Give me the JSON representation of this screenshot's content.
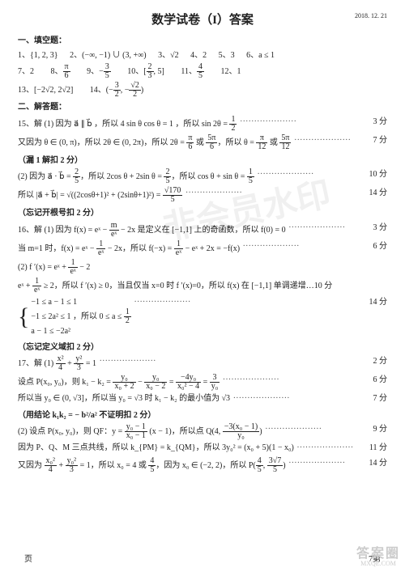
{
  "header": {
    "title": "数学试卷（I）答案",
    "date": "2018. 12. 21"
  },
  "section1": {
    "heading": "一、填空题："
  },
  "fill": {
    "a1_n": "1、",
    "a1": "{1, 2, 3}",
    "a2_n": "2、",
    "a2": "(−∞, −1) ∪ (3, +∞)",
    "a3_n": "3、",
    "a3": "√2",
    "a4_n": "4、",
    "a4": "2",
    "a5_n": "5、",
    "a5": "3",
    "a6_n": "6、",
    "a6": "a ≤ 1",
    "a7_n": "7、",
    "a7": "2",
    "a8_n": "8、",
    "a8_num": "π",
    "a8_den": "6",
    "a9_n": "9、",
    "a9_sign": "−",
    "a9_num": "3",
    "a9_den": "5",
    "a10_n": "10、",
    "a10_l": "[",
    "a10_num": "2",
    "a10_den": "3",
    "a10_r": ", 5]",
    "a11_n": "11、",
    "a11_num": "4",
    "a11_den": "5",
    "a12_n": "12、",
    "a12": "1",
    "a13_n": "13、",
    "a13": "[−2√2, 2√2]",
    "a14_n": "14、",
    "a14_l": "(−",
    "a14_num": "3",
    "a14_den": "2",
    "a14_m": ", −",
    "a14b_num": "√2",
    "a14b_den": "2",
    "a14_r": ")"
  },
  "section2": {
    "heading": "二、解答题："
  },
  "q15": {
    "l1a": "15、解 (1) 因为 a⃗ ∥ b⃗ ，所以 4 sin θ cos θ = 1 ，所以 sin 2θ = ",
    "l1_num": "1",
    "l1_den": "2",
    "l1_pts": "3 分",
    "l2a": "又因为 θ ∈ (0, π)，所以 2θ ∈ (0, 2π)，所以 2θ = ",
    "l2b": " 或 ",
    "l2c": "，所以 θ = ",
    "l2d": " 或 ",
    "l2_f1n": "π",
    "l2_f1d": "6",
    "l2_f2n": "5π",
    "l2_f2d": "6",
    "l2_f3n": "π",
    "l2_f3d": "12",
    "l2_f4n": "5π",
    "l2_f4d": "12",
    "l2_pts": "7 分",
    "note1": "（漏 1 解扣 2 分）",
    "l3a": "(2) 因为 a⃗ · b⃗ = ",
    "l3_f1n": "2",
    "l3_f1d": "5",
    "l3b": "，所以 2cos θ + 2sin θ = ",
    "l3_f2n": "2",
    "l3_f2d": "5",
    "l3c": "，所以 cos θ + sin θ = ",
    "l3_f3n": "1",
    "l3_f3d": "5",
    "l3_pts": "10 分",
    "l4a": "所以 |a⃗ + b⃗| = √((2cosθ+1)² + (2sinθ+1)²) = ",
    "l4_num": "√170",
    "l4_den": "5",
    "l4_pts": "14 分",
    "note2": "（忘记开根号扣 2 分）"
  },
  "q16": {
    "l1a": "16、解 (1) 因为 f(x) = eˣ − ",
    "l1_fn": "m",
    "l1_fd": "eˣ",
    "l1b": " − 2x 是定义在 [−1,1] 上的奇函数，所以 f(0) = 0 ",
    "l1_pts": "3 分",
    "l2a": "当 m=1 时，f(x) = eˣ − ",
    "l2_f1n": "1",
    "l2_f1d": "eˣ",
    "l2b": " − 2x，所以 f(−x) = ",
    "l2_f2n": "1",
    "l2_f2d": "eˣ",
    "l2c": " − eˣ + 2x = −f(x) ",
    "l2_pts": "6 分",
    "l3a": "(2)  f ′(x) = eˣ + ",
    "l3_fn": "1",
    "l3_fd": "eˣ",
    "l3b": " − 2",
    "l4a": "eˣ + ",
    "l4_fn": "1",
    "l4_fd": "eˣ",
    "l4b": " ≥ 2，所以 f ′(x) ≥ 0，当且仅当 x=0 时 f ′(x)=0，所以 f(x) 在 [−1,1] 单调递增…10 分",
    "brace_a": "−1 ≤ a − 1 ≤ 1",
    "brace_b": "−1 ≤ 2a² ≤ 1 ，所以 0 ≤ a ≤ ",
    "brace_c": "a − 1 ≤ −2a²",
    "l5_fn": "1",
    "l5_fd": "2",
    "l5_pts": "14 分",
    "note": "（忘记定义域扣 2 分）"
  },
  "q17": {
    "l1a": "17、解 (1) ",
    "l1_f1n": "x²",
    "l1_f1d": "4",
    "l1b": " + ",
    "l1_f2n": "y²",
    "l1_f2d": "3",
    "l1c": " = 1 ",
    "l1_pts": "2 分",
    "l2a": "设点 P(x₀, y₀)，则 k₁ − k₂ = ",
    "l2_f1n": "y₀",
    "l2_f1d": "x₀ + 2",
    "l2b": " − ",
    "l2_f2n": "y₀",
    "l2_f2d": "x₀ − 2",
    "l2c": " = ",
    "l2_f3n": "−4y₀",
    "l2_f3d": "x₀² − 4",
    "l2d": " = ",
    "l2_f4n": "3",
    "l2_f4d": "y₀",
    "l2_pts": "6 分",
    "l3a": "所以当 y₀ ∈ (0, √3]，所以当 y₀ = √3 时 k₁ − k₂ 的最小值为 √3 ",
    "l3_pts": "7 分",
    "note": "（用结论 k₁k₂ = − b²/a² 不证明扣 2 分）",
    "l4a": "(2) 设点 P(x₀, y₀)，则 QF：y = ",
    "l4_fn": "y₀ − 1",
    "l4_fd": "x₀ − 1",
    "l4b": " (x − 1)，所以点 Q(4, ",
    "l4_f2n": "−3(x₀ − 1)",
    "l4_f2d": "y₀",
    "l4c": ")",
    "l4_pts": "9 分",
    "l5a": "因为 P、Q、M 三点共线，所以 k_{PM} = k_{QM}，所以 3y₀² = (x₀ + 5)(1 − x₀) ",
    "l5_pts": "11 分",
    "l6a": "又因为 ",
    "l6_f1n": "x₀²",
    "l6_f1d": "4",
    "l6b": " + ",
    "l6_f2n": "y₀²",
    "l6_f2d": "3",
    "l6c": " = 1，所以 x₀ = 4 或 ",
    "l6_f3n": "4",
    "l6_f3d": "5",
    "l6d": "，因为 x₀ ∈ (−2, 2)，所以 P(",
    "l6_f4n": "4",
    "l6_f4d": "5",
    "l6e": ", ",
    "l6_f5n": "3√7",
    "l6_f5d": "5",
    "l6f": ")",
    "l6_pts": "14 分"
  },
  "footer": {
    "left": "页",
    "right": "7第"
  },
  "watermark": {
    "text": "非会员水印"
  },
  "logo": {
    "big": "答案圈",
    "small": "MXQE.COM"
  }
}
